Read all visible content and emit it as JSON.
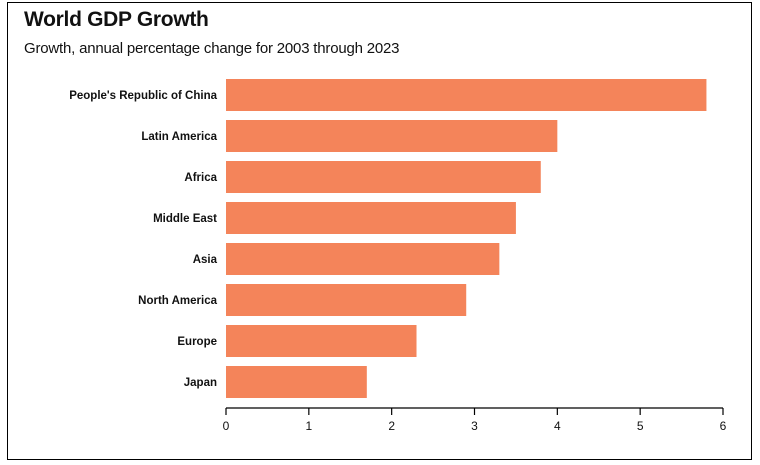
{
  "chart_data": {
    "type": "bar",
    "orientation": "horizontal",
    "title": "World GDP Growth",
    "subtitle": "Growth, annual percentage change for 2003 through 2023",
    "categories": [
      "People's Republic of China",
      "Latin America",
      "Africa",
      "Middle East",
      "Asia",
      "North America",
      "Europe",
      "Japan"
    ],
    "values": [
      5.8,
      4.0,
      3.8,
      3.5,
      3.3,
      2.9,
      2.3,
      1.7
    ],
    "xlim": [
      0,
      6
    ],
    "xticks": [
      "0",
      "1",
      "2",
      "3",
      "4",
      "5",
      "6"
    ],
    "xlabel": "",
    "ylabel": "",
    "grid": false,
    "bar_color": "#F4845A"
  }
}
